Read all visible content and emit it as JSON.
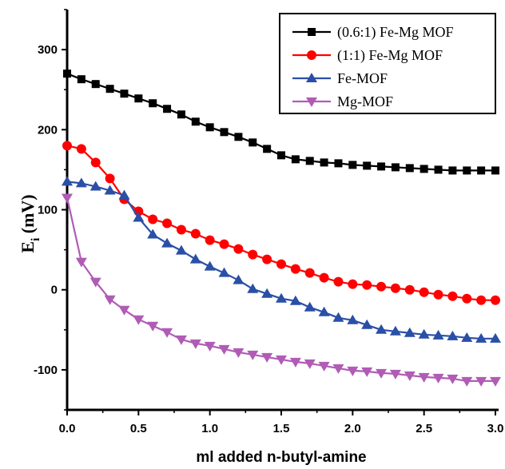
{
  "chart_data": {
    "type": "line",
    "title": "",
    "xlabel": "ml added n-butyl-amine",
    "ylabel": {
      "main": "E",
      "subscript": "i",
      "unit": "(mV)"
    },
    "xlim": [
      0,
      3.0
    ],
    "ylim": [
      -150,
      350
    ],
    "x_ticks": [
      "0.0",
      "0.5",
      "1.0",
      "1.5",
      "2.0",
      "2.5",
      "3.0"
    ],
    "y_ticks": [
      "-100",
      "0",
      "100",
      "200",
      "300"
    ],
    "x_tick_values": [
      0,
      0.5,
      1.0,
      1.5,
      2.0,
      2.5,
      3.0
    ],
    "y_tick_values": [
      -100,
      0,
      100,
      200,
      300
    ],
    "grid": false,
    "legend_position": "top-right",
    "series": [
      {
        "name": "(0.6:1) Fe-Mg MOF",
        "color": "#000000",
        "marker": "square",
        "x": [
          0,
          0.1,
          0.2,
          0.3,
          0.4,
          0.5,
          0.6,
          0.7,
          0.8,
          0.9,
          1.0,
          1.1,
          1.2,
          1.3,
          1.4,
          1.5,
          1.6,
          1.7,
          1.8,
          1.9,
          2.0,
          2.1,
          2.2,
          2.3,
          2.4,
          2.5,
          2.6,
          2.7,
          2.8,
          2.9,
          3.0
        ],
        "y": [
          270,
          263,
          257,
          251,
          245,
          239,
          233,
          226,
          219,
          210,
          203,
          197,
          191,
          184,
          176,
          168,
          163,
          161,
          159,
          158,
          156,
          155,
          154,
          153,
          152,
          151,
          150,
          149,
          149,
          149,
          149
        ]
      },
      {
        "name": "(1:1) Fe-Mg MOF",
        "color": "#ff0000",
        "marker": "circle",
        "x": [
          0,
          0.1,
          0.2,
          0.3,
          0.4,
          0.5,
          0.6,
          0.7,
          0.8,
          0.9,
          1.0,
          1.1,
          1.2,
          1.3,
          1.4,
          1.5,
          1.6,
          1.7,
          1.8,
          1.9,
          2.0,
          2.1,
          2.2,
          2.3,
          2.4,
          2.5,
          2.6,
          2.7,
          2.8,
          2.9,
          3.0
        ],
        "y": [
          180,
          176,
          159,
          139,
          113,
          98,
          88,
          83,
          75,
          70,
          62,
          57,
          51,
          44,
          38,
          32,
          26,
          21,
          15,
          10,
          7,
          6,
          4,
          2,
          0,
          -3,
          -6,
          -8,
          -11,
          -13,
          -13
        ]
      },
      {
        "name": "Fe-MOF",
        "color": "#2a4fa6",
        "marker": "triangle-up",
        "x": [
          0,
          0.1,
          0.2,
          0.3,
          0.4,
          0.5,
          0.6,
          0.7,
          0.8,
          0.9,
          1.0,
          1.1,
          1.2,
          1.3,
          1.4,
          1.5,
          1.6,
          1.7,
          1.8,
          1.9,
          2.0,
          2.1,
          2.2,
          2.3,
          2.4,
          2.5,
          2.6,
          2.7,
          2.8,
          2.9,
          3.0
        ],
        "y": [
          135,
          133,
          129,
          124,
          118,
          90,
          69,
          58,
          49,
          38,
          29,
          21,
          12,
          1,
          -5,
          -11,
          -14,
          -22,
          -28,
          -35,
          -38,
          -44,
          -50,
          -52,
          -54,
          -56,
          -57,
          -58,
          -60,
          -61,
          -61
        ]
      },
      {
        "name": "Mg-MOF",
        "color": "#b05cb5",
        "marker": "triangle-down",
        "x": [
          0,
          0.1,
          0.2,
          0.3,
          0.4,
          0.5,
          0.6,
          0.7,
          0.8,
          0.9,
          1.0,
          1.1,
          1.2,
          1.3,
          1.4,
          1.5,
          1.6,
          1.7,
          1.8,
          1.9,
          2.0,
          2.1,
          2.2,
          2.3,
          2.4,
          2.5,
          2.6,
          2.7,
          2.8,
          2.9,
          3.0
        ],
        "y": [
          115,
          35,
          10,
          -12,
          -25,
          -37,
          -45,
          -53,
          -62,
          -67,
          -70,
          -74,
          -78,
          -81,
          -84,
          -87,
          -90,
          -92,
          -95,
          -98,
          -101,
          -102,
          -104,
          -105,
          -107,
          -109,
          -110,
          -111,
          -114,
          -114,
          -114
        ]
      }
    ]
  }
}
